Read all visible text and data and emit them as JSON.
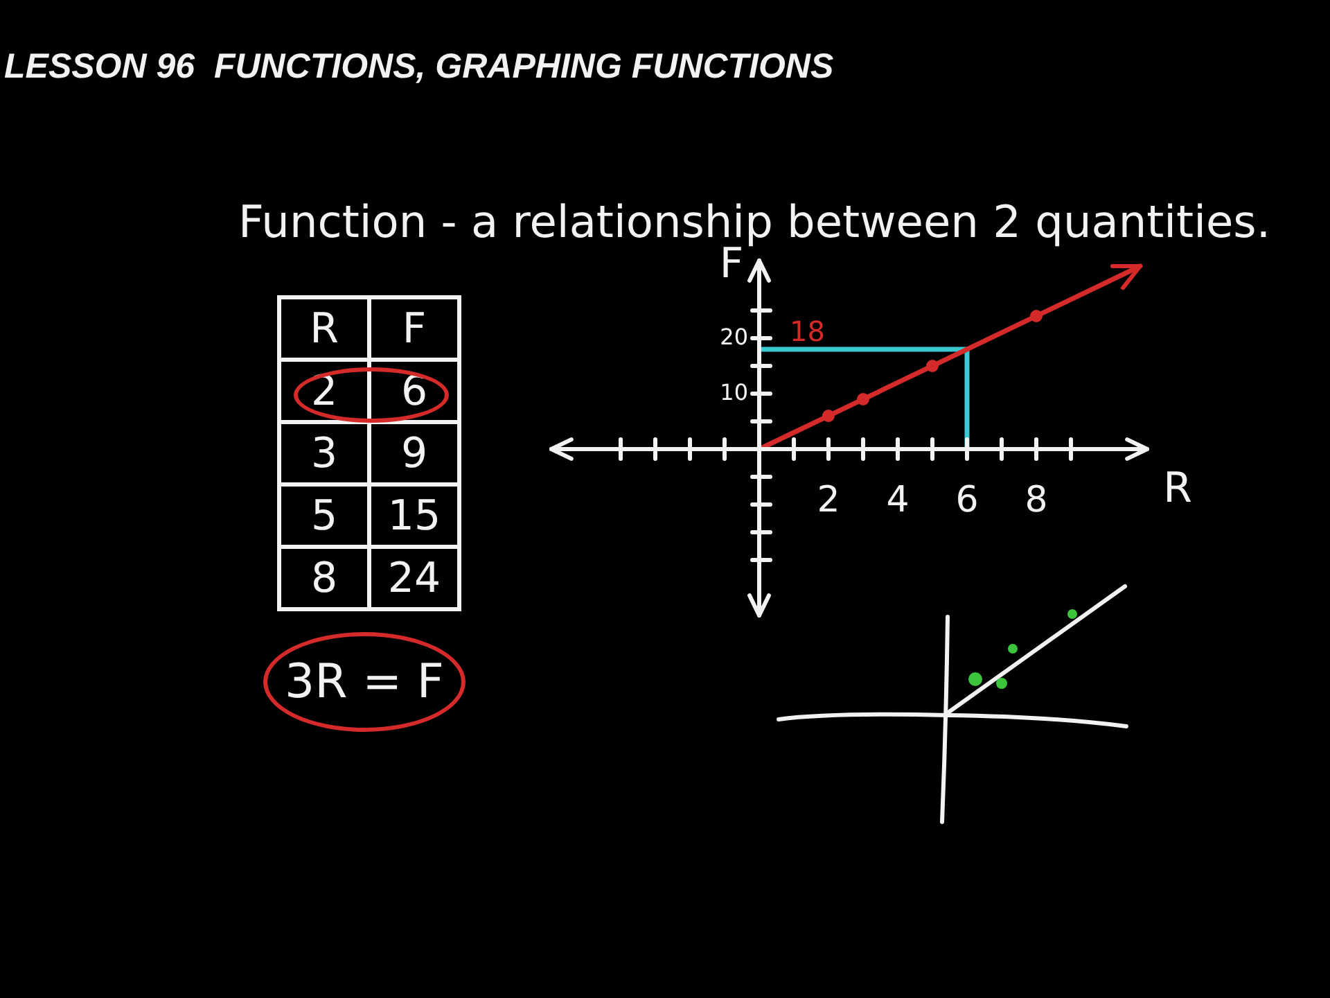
{
  "chart_data": [
    {
      "type": "line",
      "title": "LESSON 96  FUNCTIONS, GRAPHING FUNCTIONS",
      "subtitle": "Function - a relationship between 2 quantities.",
      "xlabel": "R",
      "ylabel": "F",
      "annotations": [
        "3R = F"
      ],
      "series": [
        {
          "color": "#d42a2a",
          "marker": "none",
          "x": [
            0,
            11
          ],
          "values": [
            0,
            33
          ]
        },
        {
          "type": "scatter",
          "color": "#d42a2a",
          "x": [
            2,
            3,
            5,
            8
          ],
          "values": [
            6,
            9,
            15,
            24
          ]
        }
      ],
      "xlim": [
        -6,
        11.2
      ],
      "ylim": [
        -30,
        34
      ],
      "xticks": [
        {
          "value": -4,
          "label": null
        },
        {
          "value": -3,
          "label": null
        },
        {
          "value": -2,
          "label": null
        },
        {
          "value": -1,
          "label": null
        },
        {
          "value": 1,
          "label": null
        },
        2,
        {
          "value": 3,
          "label": null
        },
        4,
        {
          "value": 5,
          "label": null
        },
        6,
        {
          "value": 7,
          "label": null
        },
        8,
        {
          "value": 9,
          "label": null
        }
      ],
      "yticks": [
        {
          "value": -20,
          "label": null
        },
        {
          "value": -15,
          "label": null
        },
        {
          "value": -10,
          "label": null
        },
        {
          "value": -5,
          "label": null
        },
        {
          "value": 5,
          "label": null
        },
        10,
        {
          "value": 15,
          "label": null
        },
        20,
        {
          "value": 25,
          "label": null
        }
      ],
      "ref_lines": [
        {
          "axis": "x",
          "value": 6,
          "color": "#3cc8d0"
        },
        {
          "axis": "y",
          "value": 18,
          "label": "18",
          "color": "#3cc8d0"
        }
      ],
      "marker": "circle"
    },
    {
      "type": "other",
      "xlabel": "R",
      "ylabel": "F",
      "categories": [
        "2",
        "3",
        "5",
        "8"
      ],
      "values": [
        6,
        9,
        15,
        24
      ],
      "data_labels": true
    }
  ]
}
